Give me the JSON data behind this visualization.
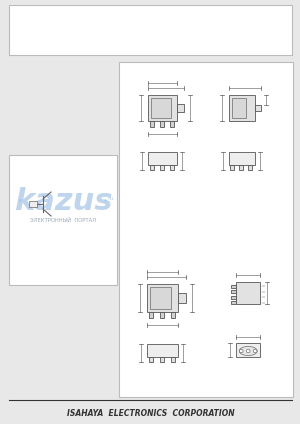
{
  "bg_color": "#e8e8e8",
  "page_bg": "#ffffff",
  "border_color": "#999999",
  "line_color": "#555555",
  "dark_line": "#333333",
  "footer_text": "ISAHAYA  ELECTRONICS  CORPORATION",
  "footer_fontsize": 5.5,
  "watermark_text": "kazus",
  "watermark_subtext": "ЭЛЕКТРОННЫЙ  ПОРТАЛ",
  "watermark_color": "#aac8e8",
  "watermark_alpha": 0.75,
  "component_color": "#cccccc"
}
